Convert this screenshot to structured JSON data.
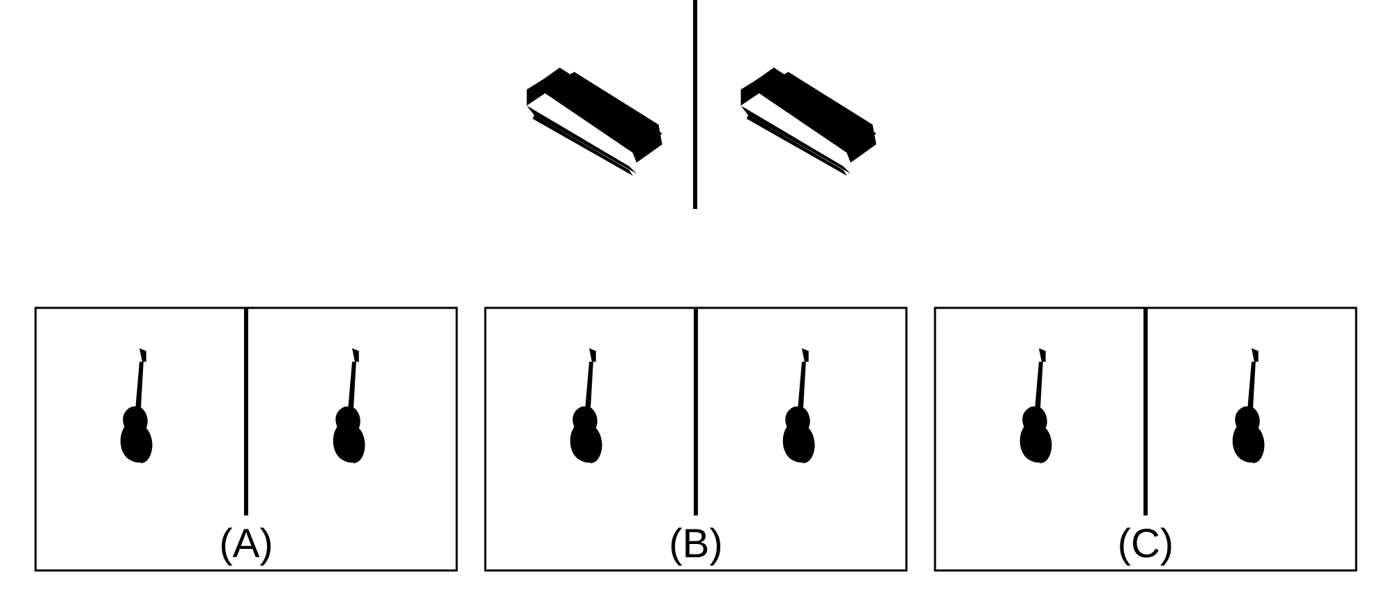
{
  "colors": {
    "background": "#ffffff",
    "line": "#000000",
    "blue": "#3a2ad0",
    "blue_dark": "#22188f",
    "blue_light": "#7b6fe8",
    "red": "#d8342a",
    "red_dark": "#8f1e18",
    "red_light": "#ee7a70",
    "green": "#3d8b22",
    "green_dark": "#1f5c12",
    "green_light": "#6fb04a"
  },
  "example": {
    "left": {
      "object": "sofa",
      "color": "blue"
    },
    "right": {
      "object": "sofa",
      "color": "red"
    }
  },
  "options": [
    {
      "label": "(A)",
      "left": {
        "object": "guitar",
        "color": "blue"
      },
      "right": {
        "object": "guitar",
        "color": "red"
      }
    },
    {
      "label": "(B)",
      "left": {
        "object": "guitar",
        "color": "blue"
      },
      "right": {
        "object": "guitar",
        "color": "blue"
      }
    },
    {
      "label": "(C)",
      "left": {
        "object": "guitar",
        "color": "blue"
      },
      "right": {
        "object": "guitar",
        "color": "green"
      }
    }
  ]
}
